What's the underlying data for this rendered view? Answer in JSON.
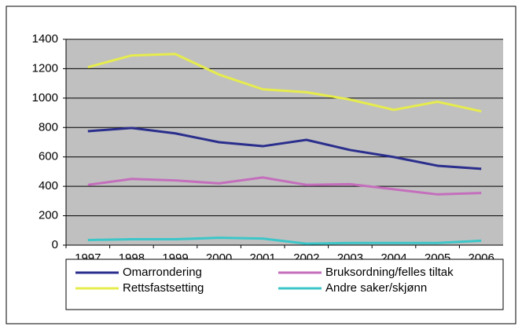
{
  "chart_data": {
    "type": "line",
    "categories": [
      "1997",
      "1998",
      "1999",
      "2000",
      "2001",
      "2002",
      "2003",
      "2004",
      "2005",
      "2006"
    ],
    "series": [
      {
        "name": "Omarrondering",
        "color": "#2a2e8c",
        "values": [
          775,
          797,
          760,
          700,
          673,
          716,
          647,
          599,
          540,
          519
        ]
      },
      {
        "name": "Bruksordning/felles tiltak",
        "color": "#c46ebc",
        "values": [
          410,
          450,
          440,
          420,
          460,
          410,
          415,
          380,
          345,
          355
        ]
      },
      {
        "name": "Rettsfastsetting",
        "color": "#e6ec4c",
        "values": [
          1210,
          1290,
          1300,
          1160,
          1060,
          1040,
          990,
          920,
          975,
          910
        ]
      },
      {
        "name": "Andre saker/skjønn",
        "color": "#3cc6c8",
        "values": [
          35,
          40,
          40,
          50,
          45,
          10,
          15,
          15,
          15,
          30
        ]
      }
    ],
    "ylim": [
      0,
      1400
    ],
    "yticks": [
      0,
      200,
      400,
      600,
      800,
      1000,
      1200,
      1400
    ],
    "grid": true,
    "legend": "bottom"
  }
}
